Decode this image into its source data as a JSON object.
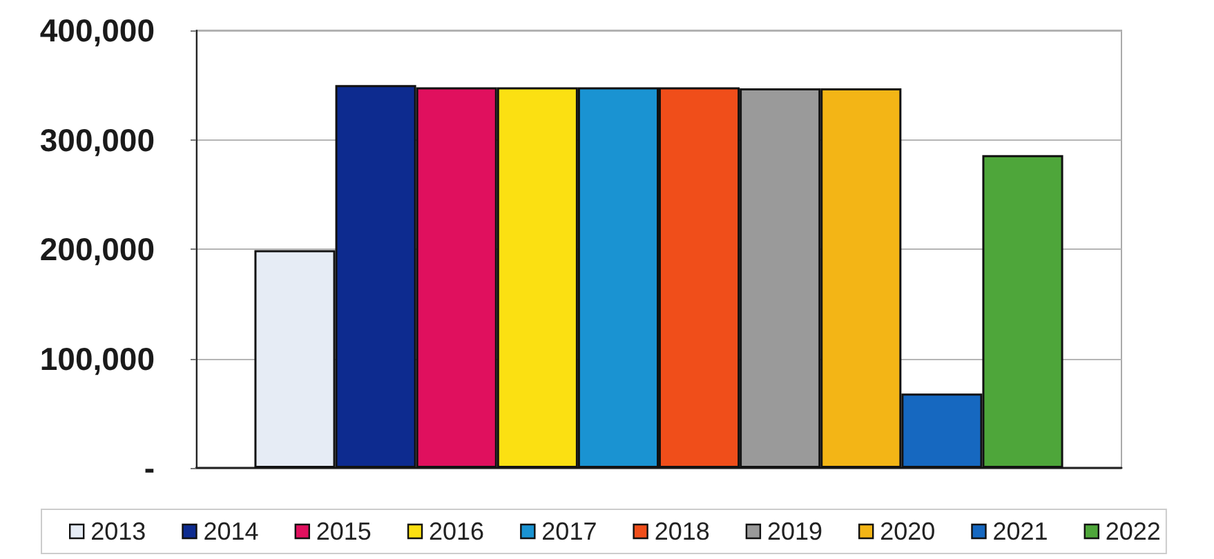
{
  "chart_data": {
    "type": "bar",
    "categories": [
      null
    ],
    "series": [
      {
        "name": "2013",
        "color": "#e6ecf5",
        "values": [
          199000
        ]
      },
      {
        "name": "2014",
        "color": "#0d2b8f",
        "values": [
          350000
        ]
      },
      {
        "name": "2015",
        "color": "#e0105e",
        "values": [
          348000
        ]
      },
      {
        "name": "2016",
        "color": "#fbe012",
        "values": [
          348000
        ]
      },
      {
        "name": "2017",
        "color": "#1a93d2",
        "values": [
          348000
        ]
      },
      {
        "name": "2018",
        "color": "#f04e1a",
        "values": [
          348000
        ]
      },
      {
        "name": "2019",
        "color": "#9a9a9a",
        "values": [
          347000
        ]
      },
      {
        "name": "2020",
        "color": "#f3b516",
        "values": [
          347000
        ]
      },
      {
        "name": "2021",
        "color": "#1668c0",
        "values": [
          68000
        ]
      },
      {
        "name": "2022",
        "color": "#4ea63a",
        "values": [
          286000
        ]
      }
    ],
    "ylim": [
      0,
      400000
    ],
    "yticks": [
      {
        "value": 0,
        "label": "-"
      },
      {
        "value": 100000,
        "label": "100,000"
      },
      {
        "value": 200000,
        "label": "200,000"
      },
      {
        "value": 300000,
        "label": "300,000"
      },
      {
        "value": 400000,
        "label": "400,000"
      }
    ],
    "grid": "y",
    "legend": "bottom"
  }
}
